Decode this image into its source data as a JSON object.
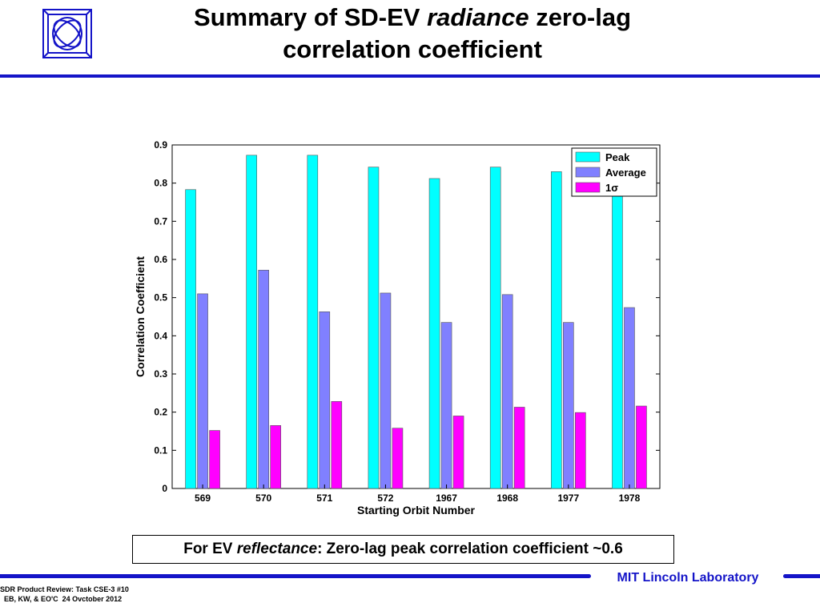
{
  "slide": {
    "title_part1": "Summary of SD-EV ",
    "title_italic": "radiance",
    "title_part2": " zero-lag",
    "title_line2": "correlation coefficient",
    "callout_prefix": "For EV ",
    "callout_italic": "reflectance",
    "callout_suffix": ": Zero-lag peak correlation coefficient ~0.6",
    "organization": "MIT Lincoln Laboratory",
    "footer_line1": "SDR Product Review: Task CSE-3 #10",
    "footer_line2": "  EB, KW, & EO'C  24 Ovctober 2012"
  },
  "colors": {
    "rule": "#1414c8",
    "peak": "#00ffff",
    "average": "#8080ff",
    "sigma": "#ff00ff"
  },
  "chart_data": {
    "type": "bar",
    "xlabel": "Starting Orbit Number",
    "ylabel": "Correlation Coefficient",
    "ylim": [
      0,
      0.9
    ],
    "yticks": [
      0,
      0.1,
      0.2,
      0.3,
      0.4,
      0.5,
      0.6,
      0.7,
      0.8,
      0.9
    ],
    "categories": [
      "569",
      "570",
      "571",
      "572",
      "1967",
      "1968",
      "1977",
      "1978"
    ],
    "legend_position": "top-right",
    "grid": false,
    "series": [
      {
        "name": "Peak",
        "color": "#00ffff",
        "values": [
          0.783,
          0.873,
          0.873,
          0.842,
          0.812,
          0.842,
          0.83,
          0.79
        ]
      },
      {
        "name": "Average",
        "color": "#8080ff",
        "values": [
          0.51,
          0.572,
          0.463,
          0.512,
          0.435,
          0.508,
          0.435,
          0.474
        ]
      },
      {
        "name": "1σ",
        "color": "#ff00ff",
        "values": [
          0.152,
          0.165,
          0.228,
          0.158,
          0.19,
          0.213,
          0.199,
          0.216
        ]
      }
    ]
  }
}
